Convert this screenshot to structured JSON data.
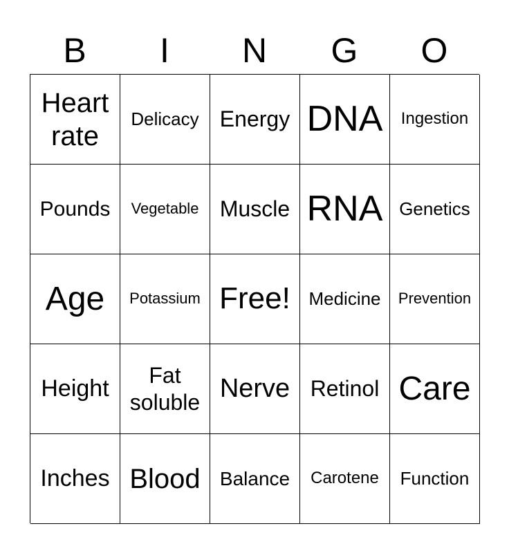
{
  "header": [
    "B",
    "I",
    "N",
    "G",
    "O"
  ],
  "cells": [
    [
      "Heart rate",
      "Delicacy",
      "Energy",
      "DNA",
      "Ingestion"
    ],
    [
      "Pounds",
      "Vegetable",
      "Muscle",
      "RNA",
      "Genetics"
    ],
    [
      "Age",
      "Potassium",
      "Free!",
      "Medicine",
      "Prevention"
    ],
    [
      "Height",
      "Fat soluble",
      "Nerve",
      "Retinol",
      "Care"
    ],
    [
      "Inches",
      "Blood",
      "Balance",
      "Carotene",
      "Function"
    ]
  ]
}
